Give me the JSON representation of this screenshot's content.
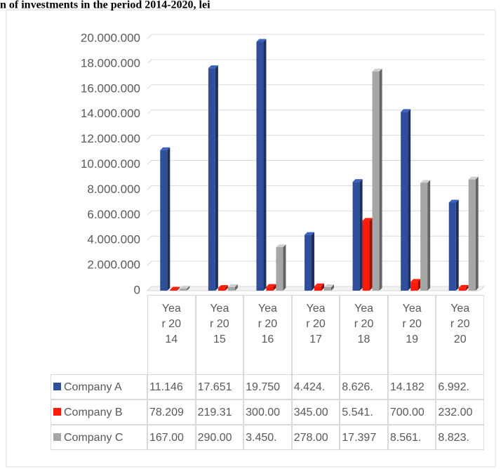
{
  "chart_data": {
    "type": "bar3d",
    "title": "n of investments in the period 2014-2020,   lei",
    "categories": [
      "Year 2014",
      "Year 2015",
      "Year 2016",
      "Year 2017",
      "Year 2018",
      "Year 2019",
      "Year 2020"
    ],
    "series": [
      {
        "name": "Company A",
        "color": "#2f4f9b",
        "values": [
          11146000,
          17651000,
          19750000,
          4424000,
          8626000,
          14182000,
          6992000
        ],
        "value_labels": [
          "11.146",
          "17.651",
          "19.750",
          "4.424.",
          "8.626.",
          "14.182",
          "6.992."
        ]
      },
      {
        "name": "Company B",
        "color": "#ff1a0a",
        "values": [
          78209,
          219310,
          300000,
          345000,
          5541000,
          700000,
          232000
        ],
        "value_labels": [
          "78.209",
          "219.31",
          "300.00",
          "345.00",
          "5.541.",
          "700.00",
          "232.00"
        ]
      },
      {
        "name": "Company C",
        "color": "#a6a6a6",
        "values": [
          167000,
          290000,
          3450000,
          278000,
          17397000,
          8561000,
          8823000
        ],
        "value_labels": [
          "167.00",
          "290.00",
          "3.450.",
          "278.00",
          "17.397",
          "8.561.",
          "8.823."
        ]
      }
    ],
    "ylim": [
      0,
      20000000
    ],
    "yticks": [
      0,
      {
        "value": 2000000,
        "label": "2.000.000"
      },
      {
        "value": 4000000,
        "label": "4.000.000"
      },
      {
        "value": 6000000,
        "label": "6.000.000"
      },
      {
        "value": 8000000,
        "label": "8.000.000"
      },
      {
        "value": 10000000,
        "label": "10.000.000"
      },
      {
        "value": 12000000,
        "label": "12.000.000"
      },
      {
        "value": 14000000,
        "label": "14.000.000"
      },
      {
        "value": 16000000,
        "label": "16.000.000"
      },
      {
        "value": 18000000,
        "label": "18.000.000"
      },
      {
        "value": 20000000,
        "label": "20.000.000"
      }
    ],
    "grid": true
  }
}
